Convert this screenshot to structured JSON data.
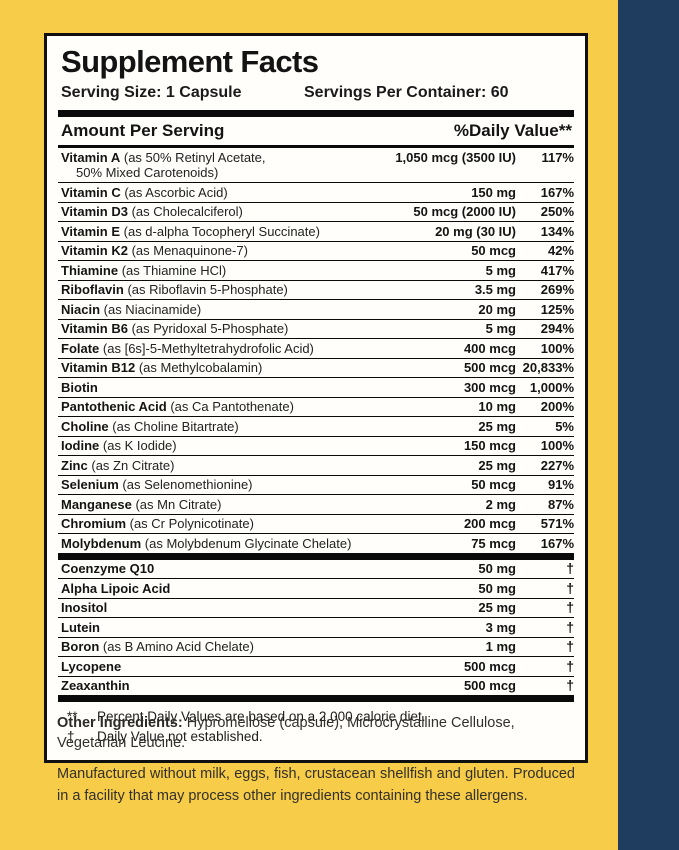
{
  "label": {
    "title": "Supplement Facts",
    "serving_size": "Serving Size: 1 Capsule",
    "servings_per_container": "Servings Per Container: 60",
    "col_amount": "Amount Per Serving",
    "col_dv": "%Daily Value**"
  },
  "rows": [
    {
      "name": "Vitamin A",
      "desc": "(as 50% Retinyl Acetate,",
      "desc2": "50% Mixed Carotenoids)",
      "amount": "1,050 mcg (3500 IU)",
      "dv": "117%"
    },
    {
      "name": "Vitamin C",
      "desc": "(as Ascorbic Acid)",
      "amount": "150 mg",
      "dv": "167%"
    },
    {
      "name": "Vitamin D3",
      "desc": "(as Cholecalciferol)",
      "amount": "50 mcg (2000 IU)",
      "dv": "250%"
    },
    {
      "name": "Vitamin E",
      "desc": "(as d-alpha Tocopheryl Succinate)",
      "amount": "20 mg (30 IU)",
      "dv": "134%"
    },
    {
      "name": "Vitamin K2",
      "desc": "(as Menaquinone-7)",
      "amount": "50 mcg",
      "dv": "42%"
    },
    {
      "name": "Thiamine",
      "desc": "(as Thiamine HCl)",
      "amount": "5 mg",
      "dv": "417%"
    },
    {
      "name": "Riboflavin",
      "desc": "(as Riboflavin 5-Phosphate)",
      "amount": "3.5 mg",
      "dv": "269%"
    },
    {
      "name": "Niacin",
      "desc": "(as Niacinamide)",
      "amount": "20 mg",
      "dv": "125%"
    },
    {
      "name": "Vitamin B6",
      "desc": "(as Pyridoxal 5-Phosphate)",
      "amount": "5 mg",
      "dv": "294%"
    },
    {
      "name": "Folate",
      "desc": "(as [6s]-5-Methyltetrahydrofolic Acid)",
      "amount": "400 mcg",
      "dv": "100%"
    },
    {
      "name": "Vitamin B12",
      "desc": "(as Methylcobalamin)",
      "amount": "500 mcg",
      "dv": "20,833%"
    },
    {
      "name": "Biotin",
      "desc": "",
      "amount": "300 mcg",
      "dv": "1,000%"
    },
    {
      "name": "Pantothenic Acid",
      "desc": "(as Ca Pantothenate)",
      "amount": "10 mg",
      "dv": "200%"
    },
    {
      "name": "Choline",
      "desc": "(as Choline Bitartrate)",
      "amount": "25 mg",
      "dv": "5%"
    },
    {
      "name": "Iodine",
      "desc": "(as K Iodide)",
      "amount": "150 mcg",
      "dv": "100%"
    },
    {
      "name": "Zinc",
      "desc": "(as Zn Citrate)",
      "amount": "25 mg",
      "dv": "227%"
    },
    {
      "name": "Selenium",
      "desc": "(as Selenomethionine)",
      "amount": "50 mcg",
      "dv": "91%"
    },
    {
      "name": "Manganese",
      "desc": "(as Mn Citrate)",
      "amount": "2 mg",
      "dv": "87%"
    },
    {
      "name": "Chromium",
      "desc": "(as Cr Polynicotinate)",
      "amount": "200 mcg",
      "dv": "571%"
    },
    {
      "name": "Molybdenum",
      "desc": "(as Molybdenum Glycinate Chelate)",
      "amount": "75 mcg",
      "dv": "167%"
    }
  ],
  "rows2": [
    {
      "name": "Coenzyme Q10",
      "desc": "",
      "amount": "50 mg",
      "dv": "†"
    },
    {
      "name": "Alpha Lipoic Acid",
      "desc": "",
      "amount": "50 mg",
      "dv": "†"
    },
    {
      "name": "Inositol",
      "desc": "",
      "amount": "25 mg",
      "dv": "†"
    },
    {
      "name": "Lutein",
      "desc": "",
      "amount": "3 mg",
      "dv": "†"
    },
    {
      "name": "Boron",
      "desc": "(as B Amino Acid Chelate)",
      "amount": "1 mg",
      "dv": "†"
    },
    {
      "name": "Lycopene",
      "desc": "",
      "amount": "500 mcg",
      "dv": "†"
    },
    {
      "name": "Zeaxanthin",
      "desc": "",
      "amount": "500 mcg",
      "dv": "†"
    }
  ],
  "footnotes": {
    "dv_symbol": "**",
    "dv_text": "Percent Daily Values are based on a 2,000 calorie diet.",
    "nd_symbol": "†",
    "nd_text": "Daily Value not established."
  },
  "other_ingredients": {
    "label": "Other Ingredients:",
    "text": " Hypromellose (capsule), Microcrystalline Cellulose, Vegetarian Leucine."
  },
  "allergen_text": "Manufactured without milk, eggs, fish, crustacean shellfish and gluten. Produced in a facility that may process other ingredients containing these allergens.",
  "colors": {
    "background": "#F6CC49",
    "accent_strip": "#1F3D5E",
    "panel": "#FFFFFF",
    "border": "#000000"
  }
}
